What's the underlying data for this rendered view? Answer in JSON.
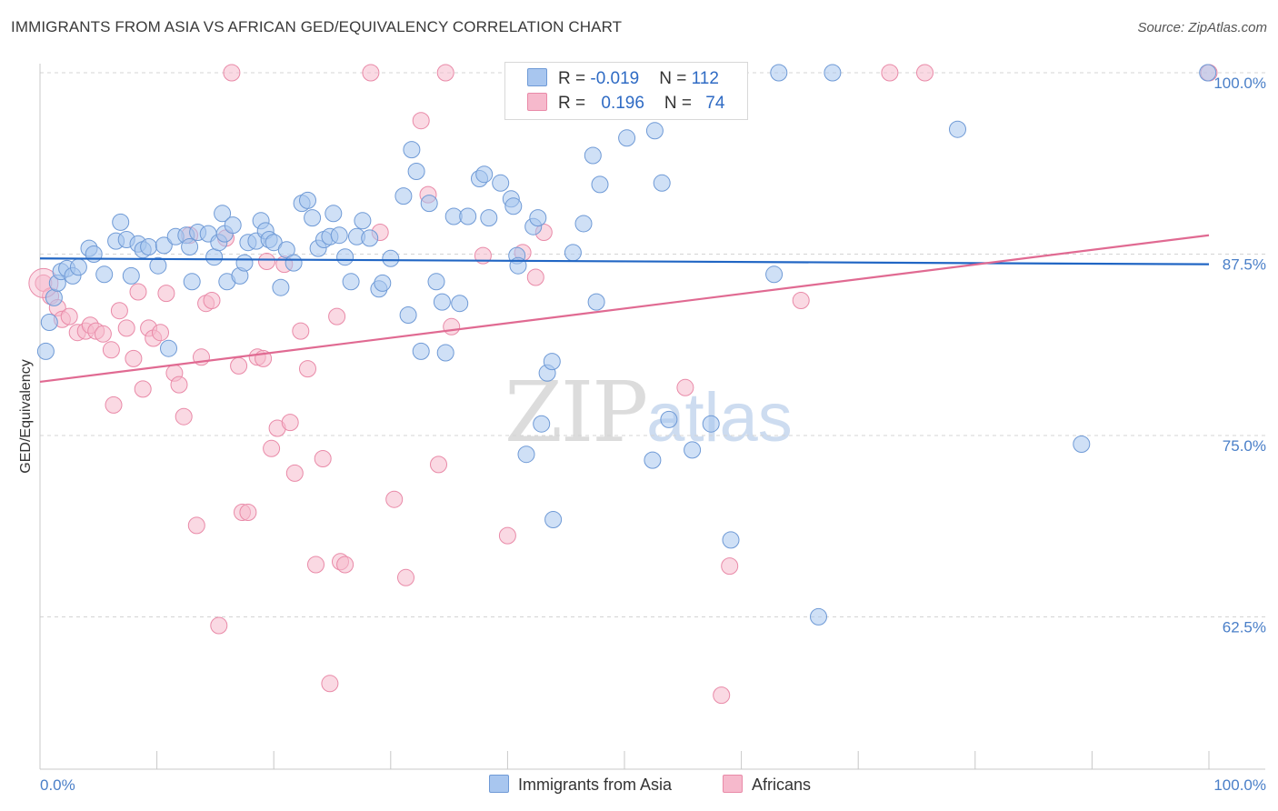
{
  "title": "IMMIGRANTS FROM ASIA VS AFRICAN GED/EQUIVALENCY CORRELATION CHART",
  "source": "Source: ZipAtlas.com",
  "watermark": {
    "zip": "ZIP",
    "atlas": "atlas"
  },
  "legend": {
    "series1": {
      "r_label": "R = ",
      "r_value": "-0.019",
      "n_label": "N = ",
      "n_value": "112"
    },
    "series2": {
      "r_label": "R = ",
      "r_value": "0.196",
      "n_label": "N = ",
      "n_value": "74"
    }
  },
  "colors": {
    "blue_fill": "#a8c6ef",
    "blue_stroke": "#6f9ad6",
    "blue_line": "#2166c4",
    "pink_fill": "#f6b9cc",
    "pink_stroke": "#e98aa8",
    "pink_line": "#e06a92",
    "grid": "#d4d4d4",
    "tick_text": "#4a7fc8"
  },
  "chart_data": {
    "type": "scatter",
    "title": "IMMIGRANTS FROM ASIA VS AFRICAN GED/EQUIVALENCY CORRELATION CHART",
    "xlabel": "",
    "ylabel": "GED/Equivalency",
    "xlim": [
      0,
      100
    ],
    "ylim": [
      52,
      100
    ],
    "x_tick_labels": [
      "0.0%",
      "100.0%"
    ],
    "y_ticks": [
      62.5,
      75.0,
      87.5,
      100.0
    ],
    "y_tick_labels": [
      "62.5%",
      "75.0%",
      "87.5%",
      "100.0%"
    ],
    "grid": true,
    "legend_position": "bottom",
    "series": [
      {
        "name": "Immigrants from Asia",
        "color": "#a8c6ef",
        "trend": [
          [
            0,
            87.2
          ],
          [
            100,
            86.8
          ]
        ],
        "points": [
          [
            0.5,
            80.8
          ],
          [
            0.8,
            82.8
          ],
          [
            1.2,
            84.5
          ],
          [
            1.5,
            85.5
          ],
          [
            1.8,
            86.3
          ],
          [
            2.3,
            86.5
          ],
          [
            2.8,
            86.0
          ],
          [
            3.3,
            86.6
          ],
          [
            4.2,
            87.9
          ],
          [
            4.6,
            87.5
          ],
          [
            5.5,
            86.1
          ],
          [
            6.5,
            88.4
          ],
          [
            6.9,
            89.7
          ],
          [
            7.4,
            88.5
          ],
          [
            7.8,
            86.0
          ],
          [
            8.4,
            88.2
          ],
          [
            8.8,
            87.8
          ],
          [
            9.3,
            88.0
          ],
          [
            10.1,
            86.7
          ],
          [
            10.6,
            88.1
          ],
          [
            11.0,
            81.0
          ],
          [
            11.6,
            88.7
          ],
          [
            12.5,
            88.8
          ],
          [
            12.8,
            88.0
          ],
          [
            13.0,
            85.6
          ],
          [
            13.5,
            89.0
          ],
          [
            14.4,
            88.9
          ],
          [
            14.9,
            87.3
          ],
          [
            15.3,
            88.3
          ],
          [
            15.6,
            90.3
          ],
          [
            15.8,
            88.9
          ],
          [
            16.0,
            85.6
          ],
          [
            16.5,
            89.5
          ],
          [
            17.1,
            86.0
          ],
          [
            17.5,
            86.9
          ],
          [
            17.8,
            88.3
          ],
          [
            18.5,
            88.4
          ],
          [
            18.9,
            89.8
          ],
          [
            19.3,
            89.1
          ],
          [
            19.6,
            88.5
          ],
          [
            20.0,
            88.3
          ],
          [
            20.6,
            85.2
          ],
          [
            21.1,
            87.8
          ],
          [
            21.7,
            86.9
          ],
          [
            22.4,
            91.0
          ],
          [
            22.9,
            91.2
          ],
          [
            23.3,
            90.0
          ],
          [
            23.8,
            87.9
          ],
          [
            24.3,
            88.5
          ],
          [
            24.8,
            88.7
          ],
          [
            25.1,
            90.3
          ],
          [
            25.6,
            88.8
          ],
          [
            26.1,
            87.3
          ],
          [
            26.6,
            85.6
          ],
          [
            27.1,
            88.7
          ],
          [
            27.6,
            89.8
          ],
          [
            28.2,
            88.6
          ],
          [
            29.0,
            85.1
          ],
          [
            29.3,
            85.5
          ],
          [
            30.0,
            87.2
          ],
          [
            31.1,
            91.5
          ],
          [
            31.5,
            83.3
          ],
          [
            31.8,
            94.7
          ],
          [
            32.2,
            93.2
          ],
          [
            32.6,
            80.8
          ],
          [
            33.3,
            91.0
          ],
          [
            33.9,
            85.6
          ],
          [
            34.4,
            84.2
          ],
          [
            34.7,
            80.7
          ],
          [
            35.4,
            90.1
          ],
          [
            35.9,
            84.1
          ],
          [
            36.6,
            90.1
          ],
          [
            37.6,
            92.7
          ],
          [
            38.0,
            93.0
          ],
          [
            38.4,
            90.0
          ],
          [
            39.4,
            92.4
          ],
          [
            40.3,
            91.3
          ],
          [
            40.5,
            90.8
          ],
          [
            40.8,
            87.4
          ],
          [
            40.9,
            86.7
          ],
          [
            41.6,
            73.7
          ],
          [
            42.2,
            89.4
          ],
          [
            42.6,
            90.0
          ],
          [
            42.9,
            75.8
          ],
          [
            43.4,
            79.3
          ],
          [
            43.8,
            80.1
          ],
          [
            43.9,
            69.2
          ],
          [
            43.9,
            97.5
          ],
          [
            45.6,
            87.6
          ],
          [
            46.5,
            89.6
          ],
          [
            47.3,
            94.3
          ],
          [
            47.6,
            84.2
          ],
          [
            47.9,
            92.3
          ],
          [
            50.2,
            95.5
          ],
          [
            50.8,
            98.3
          ],
          [
            52.4,
            73.3
          ],
          [
            52.6,
            96.0
          ],
          [
            53.2,
            92.4
          ],
          [
            53.8,
            76.1
          ],
          [
            55.8,
            74.0
          ],
          [
            57.4,
            75.8
          ],
          [
            59.1,
            67.8
          ],
          [
            62.8,
            86.1
          ],
          [
            63.2,
            100.0
          ],
          [
            66.6,
            62.5
          ],
          [
            67.8,
            100.0
          ],
          [
            78.5,
            96.1
          ],
          [
            89.1,
            74.4
          ],
          [
            99.9,
            100.0
          ]
        ]
      },
      {
        "name": "Africans",
        "color": "#f6b9cc",
        "trend": [
          [
            0,
            78.7
          ],
          [
            100,
            88.8
          ]
        ],
        "points": [
          [
            0.3,
            85.5
          ],
          [
            0.9,
            84.6
          ],
          [
            1.5,
            83.8
          ],
          [
            1.9,
            83.0
          ],
          [
            2.5,
            83.2
          ],
          [
            3.2,
            82.1
          ],
          [
            3.9,
            82.2
          ],
          [
            4.3,
            82.6
          ],
          [
            4.8,
            82.2
          ],
          [
            5.4,
            82.0
          ],
          [
            6.1,
            80.9
          ],
          [
            6.3,
            77.1
          ],
          [
            6.8,
            83.6
          ],
          [
            7.4,
            82.4
          ],
          [
            8.0,
            80.3
          ],
          [
            8.4,
            84.9
          ],
          [
            8.8,
            78.2
          ],
          [
            9.3,
            82.4
          ],
          [
            9.7,
            81.7
          ],
          [
            10.3,
            82.1
          ],
          [
            10.8,
            84.8
          ],
          [
            11.5,
            79.3
          ],
          [
            11.9,
            78.5
          ],
          [
            12.3,
            76.3
          ],
          [
            12.8,
            88.8
          ],
          [
            13.4,
            68.8
          ],
          [
            13.8,
            80.4
          ],
          [
            14.2,
            84.1
          ],
          [
            14.7,
            84.3
          ],
          [
            15.3,
            61.9
          ],
          [
            15.9,
            88.6
          ],
          [
            16.4,
            100.0
          ],
          [
            17.0,
            79.8
          ],
          [
            17.3,
            69.7
          ],
          [
            17.8,
            69.7
          ],
          [
            18.6,
            80.4
          ],
          [
            19.1,
            80.3
          ],
          [
            19.4,
            87.0
          ],
          [
            19.8,
            74.1
          ],
          [
            20.3,
            75.5
          ],
          [
            20.9,
            86.8
          ],
          [
            21.4,
            75.9
          ],
          [
            21.8,
            72.4
          ],
          [
            22.3,
            82.2
          ],
          [
            22.9,
            79.6
          ],
          [
            23.6,
            66.1
          ],
          [
            24.2,
            73.4
          ],
          [
            24.8,
            57.9
          ],
          [
            25.4,
            83.2
          ],
          [
            25.7,
            66.3
          ],
          [
            26.1,
            66.1
          ],
          [
            28.3,
            100.0
          ],
          [
            29.1,
            89.0
          ],
          [
            30.3,
            70.6
          ],
          [
            31.3,
            65.2
          ],
          [
            32.6,
            96.7
          ],
          [
            33.2,
            91.6
          ],
          [
            34.1,
            73.0
          ],
          [
            34.7,
            100.0
          ],
          [
            35.2,
            82.5
          ],
          [
            37.9,
            87.4
          ],
          [
            40.0,
            68.1
          ],
          [
            41.3,
            87.6
          ],
          [
            42.4,
            85.9
          ],
          [
            43.1,
            89.0
          ],
          [
            50.0,
            100.0
          ],
          [
            55.2,
            78.3
          ],
          [
            58.3,
            57.1
          ],
          [
            59.0,
            66.0
          ],
          [
            65.1,
            84.3
          ],
          [
            72.7,
            100.0
          ],
          [
            75.7,
            100.0
          ],
          [
            100.0,
            100.0
          ]
        ]
      }
    ]
  },
  "bottom_legend": {
    "item1": "Immigrants from Asia",
    "item2": "Africans"
  },
  "axis_text": {
    "ylabel": "GED/Equivalency",
    "x_left": "0.0%",
    "x_right": "100.0%"
  }
}
